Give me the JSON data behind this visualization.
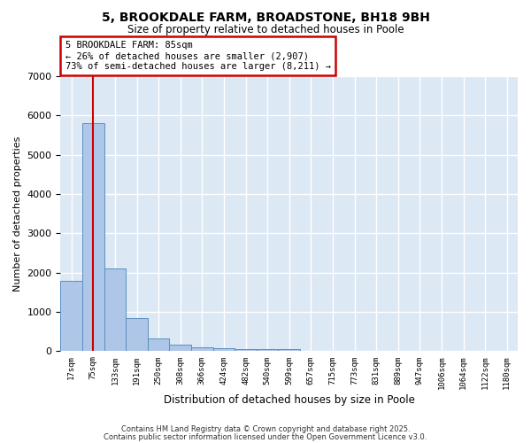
{
  "title_line1": "5, BROOKDALE FARM, BROADSTONE, BH18 9BH",
  "title_line2": "Size of property relative to detached houses in Poole",
  "xlabel": "Distribution of detached houses by size in Poole",
  "ylabel": "Number of detached properties",
  "categories": [
    "17sqm",
    "75sqm",
    "133sqm",
    "191sqm",
    "250sqm",
    "308sqm",
    "366sqm",
    "424sqm",
    "482sqm",
    "540sqm",
    "599sqm",
    "657sqm",
    "715sqm",
    "773sqm",
    "831sqm",
    "889sqm",
    "947sqm",
    "1006sqm",
    "1064sqm",
    "1122sqm",
    "1180sqm"
  ],
  "values": [
    1800,
    5800,
    2100,
    850,
    330,
    170,
    100,
    75,
    55,
    50,
    50,
    0,
    0,
    0,
    0,
    0,
    0,
    0,
    0,
    0,
    0
  ],
  "bar_color": "#aec6e8",
  "bar_edge_color": "#5a8fc2",
  "background_color": "#dde8f5",
  "grid_color": "#ffffff",
  "annotation_box_color": "#cc0000",
  "red_line_color": "#cc0000",
  "property_value_sqm": 85,
  "annotation_title": "5 BROOKDALE FARM: 85sqm",
  "annotation_line2": "← 26% of detached houses are smaller (2,907)",
  "annotation_line3": "73% of semi-detached houses are larger (8,211) →",
  "ylim": [
    0,
    7000
  ],
  "footnote1": "Contains HM Land Registry data © Crown copyright and database right 2025.",
  "footnote2": "Contains public sector information licensed under the Open Government Licence v3.0."
}
